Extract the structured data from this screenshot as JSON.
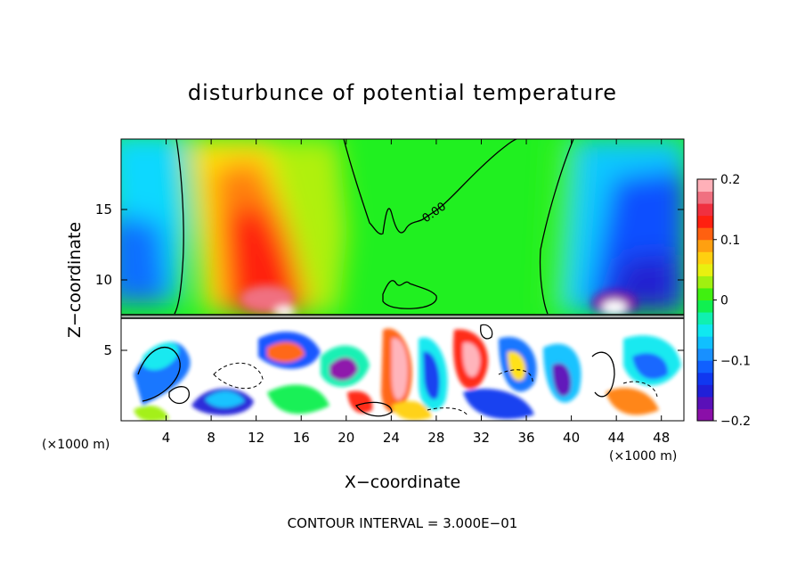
{
  "chart_data": {
    "type": "heatmap",
    "title": "disturbunce of potential temperature",
    "xlabel": "X−coordinate",
    "ylabel": "Z−coordinate",
    "x_unit_left": "(×1000 m)",
    "x_unit_right": "(×1000 m)",
    "footer": "CONTOUR INTERVAL = 3.000E−01",
    "contour_label": "0.00",
    "xlim": [
      0,
      50
    ],
    "ylim": [
      0,
      20
    ],
    "x_ticks": [
      {
        "value": 4,
        "label": "4"
      },
      {
        "value": 8,
        "label": "8"
      },
      {
        "value": 12,
        "label": "12"
      },
      {
        "value": 16,
        "label": "16"
      },
      {
        "value": 20,
        "label": "20"
      },
      {
        "value": 24,
        "label": "24"
      },
      {
        "value": 28,
        "label": "28"
      },
      {
        "value": 32,
        "label": "32"
      },
      {
        "value": 36,
        "label": "36"
      },
      {
        "value": 40,
        "label": "40"
      },
      {
        "value": 44,
        "label": "44"
      },
      {
        "value": 48,
        "label": "48"
      }
    ],
    "y_ticks": [
      {
        "value": 5,
        "label": "5"
      },
      {
        "value": 10,
        "label": "10"
      },
      {
        "value": 15,
        "label": "15"
      }
    ],
    "colorbar": {
      "range": [
        -0.2,
        0.2
      ],
      "ticks": [
        {
          "value": 0.2,
          "label": "0.2"
        },
        {
          "value": 0.1,
          "label": "0.1"
        },
        {
          "value": 0,
          "label": "0"
        },
        {
          "value": -0.1,
          "label": "−0.1"
        },
        {
          "value": -0.2,
          "label": "−0.2"
        }
      ],
      "colors": [
        "#8a0fa8",
        "#5a10b8",
        "#2020d8",
        "#1038f0",
        "#1060ff",
        "#1890ff",
        "#10c0ff",
        "#10e8f0",
        "#10f0b0",
        "#10f050",
        "#40f010",
        "#a0f010",
        "#e8f010",
        "#ffd010",
        "#ffa010",
        "#ff6010",
        "#ff2010",
        "#f03040",
        "#f07080",
        "#ffb0b8"
      ]
    },
    "regions": [
      {
        "x": [
          12,
          19
        ],
        "z": [
          7.5,
          19
        ],
        "level": 0.15
      },
      {
        "x": [
          0,
          5
        ],
        "z": [
          7.5,
          19
        ],
        "level": -0.08
      },
      {
        "x": [
          39,
          50
        ],
        "z": [
          7.5,
          19
        ],
        "level": -0.12
      },
      {
        "x": [
          19,
          39
        ],
        "z": [
          7.5,
          19
        ],
        "level": 0.0
      },
      {
        "x": [
          0,
          50
        ],
        "z": [
          0,
          7.3
        ],
        "level": "mixed"
      }
    ]
  }
}
